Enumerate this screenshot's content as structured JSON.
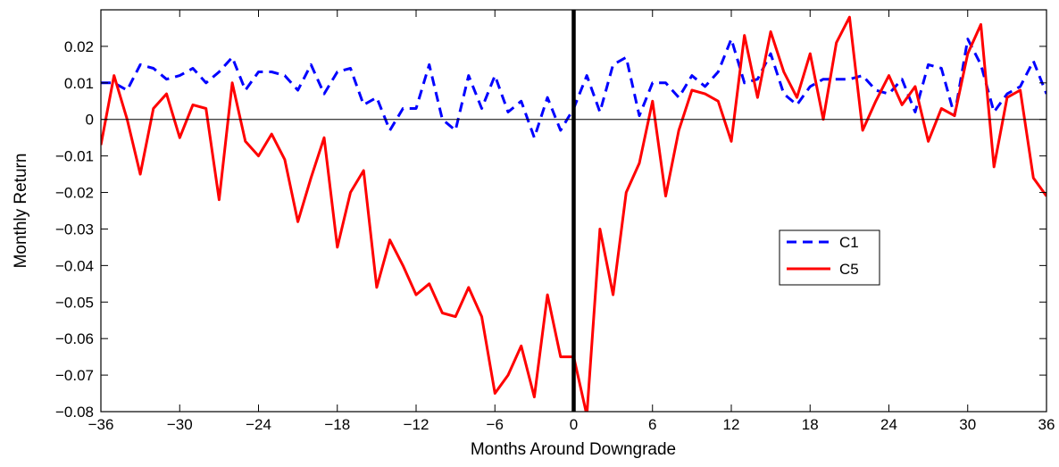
{
  "chart_data": {
    "type": "line",
    "title": "",
    "xlabel": "Months Around Downgrade",
    "ylabel": "Monthly Return",
    "xlim": [
      -36,
      36
    ],
    "ylim": [
      -0.08,
      0.03
    ],
    "xticks": [
      -36,
      -30,
      -24,
      -18,
      -12,
      -6,
      0,
      6,
      12,
      18,
      24,
      30,
      36
    ],
    "xtick_labels": [
      "−36",
      "−30",
      "−24",
      "−18",
      "−12",
      "−6",
      "0",
      "6",
      "12",
      "18",
      "24",
      "30",
      "36"
    ],
    "yticks": [
      -0.08,
      -0.07,
      -0.06,
      -0.05,
      -0.04,
      -0.03,
      -0.02,
      -0.01,
      0,
      0.01,
      0.02
    ],
    "ytick_labels": [
      "−0.08",
      "−0.07",
      "−0.06",
      "−0.05",
      "−0.04",
      "−0.03",
      "−0.02",
      "−0.01",
      "0",
      "0.01",
      "0.02"
    ],
    "grid": false,
    "reference_lines": {
      "horizontal_at": 0,
      "vertical_at": 0
    },
    "legend_position": "center-right",
    "series": [
      {
        "name": "C1",
        "color": "#0000ff",
        "style": "dashed",
        "x": [
          -36,
          -35,
          -34,
          -33,
          -32,
          -31,
          -30,
          -29,
          -28,
          -27,
          -26,
          -25,
          -24,
          -23,
          -22,
          -21,
          -20,
          -19,
          -18,
          -17,
          -16,
          -15,
          -14,
          -13,
          -12,
          -11,
          -10,
          -9,
          -8,
          -7,
          -6,
          -5,
          -4,
          -3,
          -2,
          -1,
          0,
          1,
          2,
          3,
          4,
          5,
          6,
          7,
          8,
          9,
          10,
          11,
          12,
          13,
          14,
          15,
          16,
          17,
          18,
          19,
          20,
          21,
          22,
          23,
          24,
          25,
          26,
          27,
          28,
          29,
          30,
          31,
          32,
          33,
          34,
          35,
          36
        ],
        "values": [
          0.01,
          0.01,
          0.008,
          0.015,
          0.014,
          0.011,
          0.012,
          0.014,
          0.01,
          0.013,
          0.017,
          0.008,
          0.013,
          0.013,
          0.012,
          0.008,
          0.015,
          0.007,
          0.013,
          0.014,
          0.004,
          0.006,
          -0.003,
          0.003,
          0.003,
          0.015,
          0.0,
          -0.003,
          0.012,
          0.003,
          0.012,
          0.002,
          0.005,
          -0.005,
          0.006,
          -0.003,
          0.003,
          0.012,
          0.002,
          0.015,
          0.017,
          0.001,
          0.01,
          0.01,
          0.006,
          0.012,
          0.009,
          0.013,
          0.022,
          0.01,
          0.011,
          0.018,
          0.007,
          0.004,
          0.009,
          0.011,
          0.011,
          0.011,
          0.012,
          0.008,
          0.007,
          0.011,
          0.002,
          0.015,
          0.014,
          0.001,
          0.022,
          0.015,
          0.002,
          0.007,
          0.009,
          0.016,
          0.007
        ]
      },
      {
        "name": "C5",
        "color": "#ff0000",
        "style": "solid",
        "x": [
          -36,
          -35,
          -34,
          -33,
          -32,
          -31,
          -30,
          -29,
          -28,
          -27,
          -26,
          -25,
          -24,
          -23,
          -22,
          -21,
          -20,
          -19,
          -18,
          -17,
          -16,
          -15,
          -14,
          -13,
          -12,
          -11,
          -10,
          -9,
          -8,
          -7,
          -6,
          -5,
          -4,
          -3,
          -2,
          -1,
          0,
          1,
          2,
          3,
          4,
          5,
          6,
          7,
          8,
          9,
          10,
          11,
          12,
          13,
          14,
          15,
          16,
          17,
          18,
          19,
          20,
          21,
          22,
          23,
          24,
          25,
          26,
          27,
          28,
          29,
          30,
          31,
          32,
          33,
          34,
          35,
          36
        ],
        "values": [
          -0.007,
          0.012,
          0.0,
          -0.015,
          0.003,
          0.007,
          -0.005,
          0.004,
          0.003,
          -0.022,
          0.01,
          -0.006,
          -0.01,
          -0.004,
          -0.011,
          -0.028,
          -0.016,
          -0.005,
          -0.035,
          -0.02,
          -0.014,
          -0.046,
          -0.033,
          -0.04,
          -0.048,
          -0.045,
          -0.053,
          -0.054,
          -0.046,
          -0.054,
          -0.075,
          -0.07,
          -0.062,
          -0.076,
          -0.048,
          -0.065,
          -0.065,
          -0.081,
          -0.03,
          -0.048,
          -0.02,
          -0.012,
          0.005,
          -0.021,
          -0.003,
          0.008,
          0.007,
          0.005,
          -0.006,
          0.023,
          0.006,
          0.024,
          0.013,
          0.006,
          0.018,
          -0.0,
          0.021,
          0.028,
          -0.003,
          0.005,
          0.012,
          0.004,
          0.009,
          -0.006,
          0.003,
          0.001,
          0.018,
          0.026,
          -0.013,
          0.006,
          0.008,
          -0.016,
          -0.021
        ]
      }
    ]
  }
}
